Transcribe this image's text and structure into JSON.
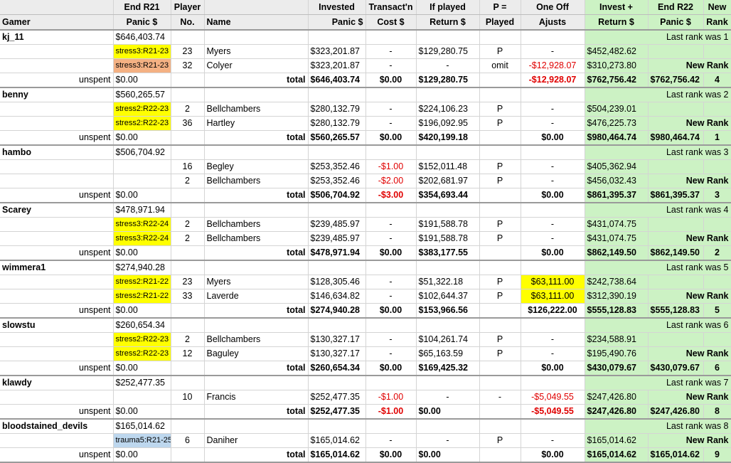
{
  "headers": {
    "gamer": [
      "",
      "Gamer"
    ],
    "panic": [
      "End R21",
      "Panic $"
    ],
    "player_no": [
      "Player",
      "No."
    ],
    "name": [
      "",
      "Name"
    ],
    "invested": [
      "Invested",
      "Panic $"
    ],
    "transact": [
      "Transact'n",
      "Cost $"
    ],
    "return": [
      "If played",
      "Return $"
    ],
    "played": [
      "P =",
      "Played"
    ],
    "adjust": [
      "One Off",
      "Ajusts"
    ],
    "invest_return": [
      "Invest +",
      "Return $"
    ],
    "end_r22": [
      "End R22",
      "Panic $"
    ],
    "new_rank": [
      "New",
      "Rank"
    ]
  },
  "labels": {
    "unspent": "unspent",
    "total": "total",
    "new_rank": "New Rank"
  },
  "gamers": [
    {
      "name": "kj_11",
      "panic": "$646,403.74",
      "last_rank": "Last rank was 1",
      "players": [
        {
          "tag": "stress3:R21-23",
          "tag_color": "#ffff00",
          "no": "23",
          "name": "Myers",
          "invested": "$323,201.87",
          "cost": "-",
          "cost_red": false,
          "ret": "$129,280.75",
          "played": "P",
          "adjust": "-",
          "adjust_red": false,
          "adjust_hl": false,
          "ir": "$452,482.62"
        },
        {
          "tag": "stress3:R21-23",
          "tag_color": "#f4b183",
          "no": "32",
          "name": "Colyer",
          "invested": "$323,201.87",
          "cost": "-",
          "cost_red": false,
          "ret": "-",
          "played": "omit",
          "adjust": "-$12,928.07",
          "adjust_red": true,
          "adjust_hl": false,
          "ir": "$310,273.80"
        }
      ],
      "unspent": "$0.00",
      "total": {
        "invested": "$646,403.74",
        "cost": "$0.00",
        "cost_red": false,
        "ret": "$129,280.75",
        "adjust": "-$12,928.07",
        "adjust_red": true,
        "ir": "$762,756.42",
        "end": "$762,756.42",
        "rank": "4"
      }
    },
    {
      "name": "benny",
      "panic": "$560,265.57",
      "last_rank": "Last rank was 2",
      "players": [
        {
          "tag": "stress2:R22-23",
          "tag_color": "#ffff00",
          "no": "2",
          "name": "Bellchambers",
          "invested": "$280,132.79",
          "cost": "-",
          "cost_red": false,
          "ret": "$224,106.23",
          "played": "P",
          "adjust": "-",
          "adjust_red": false,
          "adjust_hl": false,
          "ir": "$504,239.01"
        },
        {
          "tag": "stress2:R22-23",
          "tag_color": "#ffff00",
          "no": "36",
          "name": "Hartley",
          "invested": "$280,132.79",
          "cost": "-",
          "cost_red": false,
          "ret": "$196,092.95",
          "played": "P",
          "adjust": "-",
          "adjust_red": false,
          "adjust_hl": false,
          "ir": "$476,225.73"
        }
      ],
      "unspent": "$0.00",
      "total": {
        "invested": "$560,265.57",
        "cost": "$0.00",
        "cost_red": false,
        "ret": "$420,199.18",
        "adjust": "$0.00",
        "adjust_red": false,
        "ir": "$980,464.74",
        "end": "$980,464.74",
        "rank": "1"
      }
    },
    {
      "name": "hambo",
      "panic": "$506,704.92",
      "last_rank": "Last rank was 3",
      "players": [
        {
          "tag": "",
          "tag_color": "",
          "no": "16",
          "name": "Begley",
          "invested": "$253,352.46",
          "cost": "-$1.00",
          "cost_red": true,
          "ret": "$152,011.48",
          "played": "P",
          "adjust": "-",
          "adjust_red": false,
          "adjust_hl": false,
          "ir": "$405,362.94"
        },
        {
          "tag": "",
          "tag_color": "",
          "no": "2",
          "name": "Bellchambers",
          "invested": "$253,352.46",
          "cost": "-$2.00",
          "cost_red": true,
          "ret": "$202,681.97",
          "played": "P",
          "adjust": "-",
          "adjust_red": false,
          "adjust_hl": false,
          "ir": "$456,032.43"
        }
      ],
      "unspent": "$0.00",
      "total": {
        "invested": "$506,704.92",
        "cost": "-$3.00",
        "cost_red": true,
        "ret": "$354,693.44",
        "adjust": "$0.00",
        "adjust_red": false,
        "ir": "$861,395.37",
        "end": "$861,395.37",
        "rank": "3"
      }
    },
    {
      "name": "Scarey",
      "panic": "$478,971.94",
      "last_rank": "Last rank was 4",
      "players": [
        {
          "tag": "stress3:R22-24",
          "tag_color": "#ffff00",
          "no": "2",
          "name": "Bellchambers",
          "invested": "$239,485.97",
          "cost": "-",
          "cost_red": false,
          "ret": "$191,588.78",
          "played": "P",
          "adjust": "-",
          "adjust_red": false,
          "adjust_hl": false,
          "ir": "$431,074.75"
        },
        {
          "tag": "stress3:R22-24",
          "tag_color": "#ffff00",
          "no": "2",
          "name": "Bellchambers",
          "invested": "$239,485.97",
          "cost": "-",
          "cost_red": false,
          "ret": "$191,588.78",
          "played": "P",
          "adjust": "-",
          "adjust_red": false,
          "adjust_hl": false,
          "ir": "$431,074.75"
        }
      ],
      "unspent": "$0.00",
      "total": {
        "invested": "$478,971.94",
        "cost": "$0.00",
        "cost_red": false,
        "ret": "$383,177.55",
        "adjust": "$0.00",
        "adjust_red": false,
        "ir": "$862,149.50",
        "end": "$862,149.50",
        "rank": "2"
      }
    },
    {
      "name": "wimmera1",
      "panic": "$274,940.28",
      "last_rank": "Last rank was 5",
      "players": [
        {
          "tag": "stress2:R21-22",
          "tag_color": "#ffff00",
          "no": "23",
          "name": "Myers",
          "invested": "$128,305.46",
          "cost": "-",
          "cost_red": false,
          "ret": "$51,322.18",
          "played": "P",
          "adjust": "$63,111.00",
          "adjust_red": false,
          "adjust_hl": true,
          "ir": "$242,738.64"
        },
        {
          "tag": "stress2:R21-22",
          "tag_color": "#ffff00",
          "no": "33",
          "name": "Laverde",
          "invested": "$146,634.82",
          "cost": "-",
          "cost_red": false,
          "ret": "$102,644.37",
          "played": "P",
          "adjust": "$63,111.00",
          "adjust_red": false,
          "adjust_hl": true,
          "ir": "$312,390.19"
        }
      ],
      "unspent": "$0.00",
      "total": {
        "invested": "$274,940.28",
        "cost": "$0.00",
        "cost_red": false,
        "ret": "$153,966.56",
        "adjust": "$126,222.00",
        "adjust_red": false,
        "ir": "$555,128.83",
        "end": "$555,128.83",
        "rank": "5"
      }
    },
    {
      "name": "slowstu",
      "panic": "$260,654.34",
      "last_rank": "Last rank was 6",
      "players": [
        {
          "tag": "stress2:R22-23",
          "tag_color": "#ffff00",
          "no": "2",
          "name": "Bellchambers",
          "invested": "$130,327.17",
          "cost": "-",
          "cost_red": false,
          "ret": "$104,261.74",
          "played": "P",
          "adjust": "-",
          "adjust_red": false,
          "adjust_hl": false,
          "ir": "$234,588.91"
        },
        {
          "tag": "stress2:R22-23",
          "tag_color": "#ffff00",
          "no": "12",
          "name": "Baguley",
          "invested": "$130,327.17",
          "cost": "-",
          "cost_red": false,
          "ret": "$65,163.59",
          "played": "P",
          "adjust": "-",
          "adjust_red": false,
          "adjust_hl": false,
          "ir": "$195,490.76"
        }
      ],
      "unspent": "$0.00",
      "total": {
        "invested": "$260,654.34",
        "cost": "$0.00",
        "cost_red": false,
        "ret": "$169,425.32",
        "adjust": "$0.00",
        "adjust_red": false,
        "ir": "$430,079.67",
        "end": "$430,079.67",
        "rank": "6"
      }
    },
    {
      "name": "klawdy",
      "panic": "$252,477.35",
      "last_rank": "Last rank was 7",
      "players": [
        {
          "tag": "",
          "tag_color": "",
          "no": "10",
          "name": "Francis",
          "invested": "$252,477.35",
          "cost": "-$1.00",
          "cost_red": true,
          "ret": "-",
          "played": "-",
          "adjust": "-$5,049.55",
          "adjust_red": true,
          "adjust_hl": false,
          "ir": "$247,426.80"
        }
      ],
      "unspent": "$0.00",
      "total": {
        "invested": "$252,477.35",
        "cost": "-$1.00",
        "cost_red": true,
        "ret": "$0.00",
        "adjust": "-$5,049.55",
        "adjust_red": true,
        "ir": "$247,426.80",
        "end": "$247,426.80",
        "rank": "8"
      }
    },
    {
      "name": "bloodstained_devils",
      "panic": "$165,014.62",
      "last_rank": "Last rank was 8",
      "players": [
        {
          "tag": "trauma5:R21-25",
          "tag_color": "#bdd7ee",
          "no": "6",
          "name": "Daniher",
          "invested": "$165,014.62",
          "cost": "-",
          "cost_red": false,
          "ret": "-",
          "played": "P",
          "adjust": "-",
          "adjust_red": false,
          "adjust_hl": false,
          "ir": "$165,014.62"
        }
      ],
      "unspent": "$0.00",
      "total": {
        "invested": "$165,014.62",
        "cost": "$0.00",
        "cost_red": false,
        "ret": "$0.00",
        "adjust": "$0.00",
        "adjust_red": false,
        "ir": "$165,014.62",
        "end": "$165,014.62",
        "rank": "9"
      }
    }
  ]
}
